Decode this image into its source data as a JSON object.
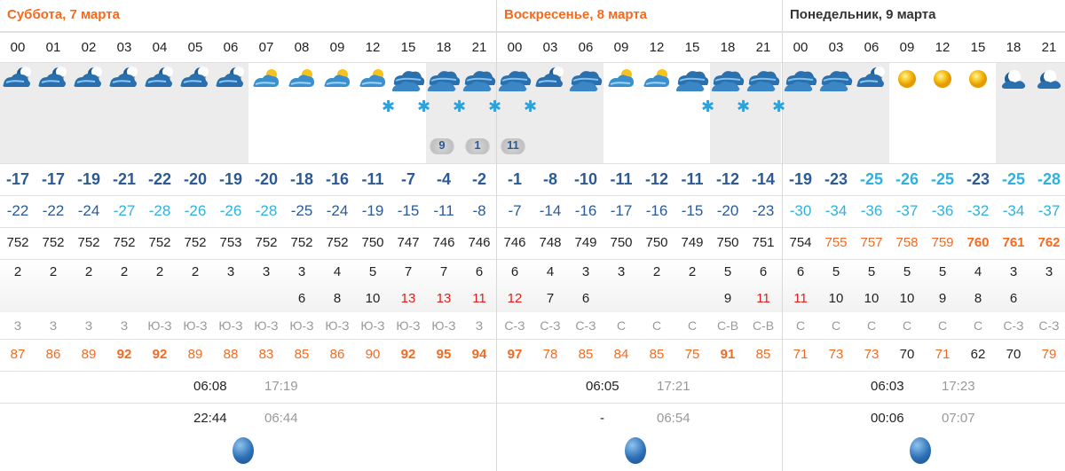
{
  "days": [
    {
      "title": "Суббота, 7 марта",
      "title_color": "#f46a1e",
      "hours": [
        "00",
        "01",
        "02",
        "03",
        "04",
        "05",
        "06",
        "07",
        "08",
        "09",
        "12",
        "15",
        "18",
        "21"
      ],
      "temp": [
        "-17",
        "-17",
        "-19",
        "-21",
        "-22",
        "-20",
        "-19",
        "-20",
        "-18",
        "-16",
        "-11",
        "-7",
        "-4",
        "-2"
      ],
      "feels": [
        "-22",
        "-22",
        "-24",
        "-27",
        "-28",
        "-26",
        "-26",
        "-28",
        "-25",
        "-24",
        "-19",
        "-15",
        "-11",
        "-8"
      ],
      "pressure": [
        "752",
        "752",
        "752",
        "752",
        "752",
        "752",
        "753",
        "752",
        "752",
        "752",
        "750",
        "747",
        "746",
        "746"
      ],
      "wind": [
        "2",
        "2",
        "2",
        "2",
        "2",
        "2",
        "3",
        "3",
        "3",
        "4",
        "5",
        "7",
        "7",
        "6"
      ],
      "gust": [
        "",
        "",
        "",
        "",
        "",
        "",
        "",
        "",
        "6",
        "8",
        "10",
        "13",
        "13",
        "11"
      ],
      "wind_dir": [
        "З",
        "З",
        "З",
        "З",
        "Ю-З",
        "Ю-З",
        "Ю-З",
        "Ю-З",
        "Ю-З",
        "Ю-З",
        "Ю-З",
        "Ю-З",
        "Ю-З",
        "З"
      ],
      "humidity": [
        "87",
        "86",
        "89",
        "92",
        "92",
        "89",
        "88",
        "83",
        "85",
        "86",
        "90",
        "92",
        "95",
        "94"
      ],
      "sunrise": "06:08",
      "sunset": "17:19",
      "moonrise": "22:44",
      "moonset": "06:44"
    },
    {
      "title": "Воскресенье, 8 марта",
      "title_color": "#f46a1e",
      "hours": [
        "00",
        "03",
        "06",
        "09",
        "12",
        "15",
        "18",
        "21"
      ],
      "temp": [
        "-1",
        "-8",
        "-10",
        "-11",
        "-12",
        "-11",
        "-12",
        "-14"
      ],
      "feels": [
        "-7",
        "-14",
        "-16",
        "-17",
        "-16",
        "-15",
        "-20",
        "-23"
      ],
      "pressure": [
        "746",
        "748",
        "749",
        "750",
        "750",
        "749",
        "750",
        "751"
      ],
      "wind": [
        "6",
        "4",
        "3",
        "3",
        "2",
        "2",
        "5",
        "6"
      ],
      "gust": [
        "12",
        "7",
        "6",
        "",
        "",
        "",
        "9",
        "11"
      ],
      "wind_dir": [
        "С-З",
        "С-З",
        "С-З",
        "С",
        "С",
        "С",
        "С-В",
        "С-В"
      ],
      "humidity": [
        "97",
        "78",
        "85",
        "84",
        "85",
        "75",
        "91",
        "85"
      ],
      "sunrise": "06:05",
      "sunset": "17:21",
      "moonrise": "-",
      "moonset": "06:54"
    },
    {
      "title": "Понедельник, 9 марта",
      "title_color": "#333333",
      "hours": [
        "00",
        "03",
        "06",
        "09",
        "12",
        "15",
        "18",
        "21"
      ],
      "temp": [
        "-19",
        "-23",
        "-25",
        "-26",
        "-25",
        "-23",
        "-25",
        "-28"
      ],
      "feels": [
        "-30",
        "-34",
        "-36",
        "-37",
        "-36",
        "-32",
        "-34",
        "-37"
      ],
      "pressure": [
        "754",
        "755",
        "757",
        "758",
        "759",
        "760",
        "761",
        "762"
      ],
      "wind": [
        "6",
        "5",
        "5",
        "5",
        "5",
        "4",
        "3",
        "3"
      ],
      "gust": [
        "11",
        "10",
        "10",
        "10",
        "9",
        "8",
        "6",
        ""
      ],
      "wind_dir": [
        "С",
        "С",
        "С",
        "С",
        "С",
        "С",
        "С-З",
        "С-З"
      ],
      "humidity": [
        "71",
        "73",
        "73",
        "70",
        "71",
        "62",
        "70",
        "79"
      ],
      "sunrise": "06:03",
      "sunset": "17:23",
      "moonrise": "00:06",
      "moonset": "07:07"
    }
  ],
  "snow_amounts": [
    "9",
    "1",
    "11"
  ],
  "icons": {
    "night_cloudy": "moon-cloud-snow-icon",
    "day_cloudy": "sun-cloud-icon",
    "overcast": "overcast-icon",
    "clear_day": "sun-icon",
    "clear_night": "moon-icon",
    "snow": "snowflake-icon",
    "moon_phase": "moon-phase-icon"
  },
  "colors": {
    "accent_orange": "#f46a1e",
    "temp_dark": "#2b5a96",
    "temp_light": "#2fb2dd",
    "gust_red": "#e01e1e",
    "night_shade": "#ececec"
  }
}
